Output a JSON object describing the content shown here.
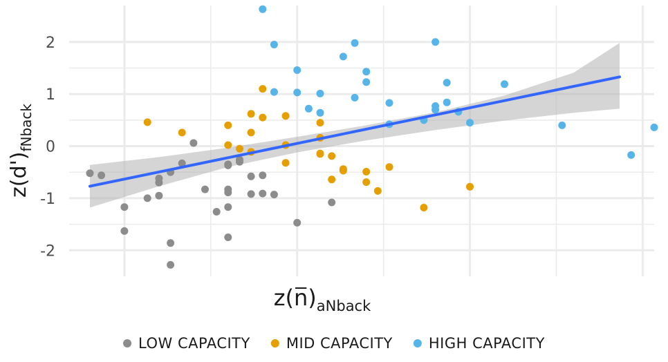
{
  "chart_data": {
    "type": "scatter",
    "xlabel": {
      "main": "z(",
      "symbol": "n",
      "close": ")",
      "sub": "aNback"
    },
    "ylabel": {
      "main": "z(d')",
      "sub": "fNback"
    },
    "xlim": [
      -1.98,
      3.1
    ],
    "ylim": [
      -2.5,
      2.7
    ],
    "x_major_ticks": [
      -1.5,
      0,
      1.5,
      3
    ],
    "x_minor_ticks": [
      -0.75,
      0.75,
      2.25
    ],
    "y_ticks": [
      -2,
      -1,
      0,
      1,
      2
    ],
    "y_tick_labels": [
      "-2",
      "-1",
      "0",
      "1",
      "2"
    ],
    "grid": true,
    "legend_position": "bottom",
    "colors": {
      "low": "#8c8c8c",
      "mid": "#e69f00",
      "high": "#56b4e9",
      "fit": "#3366ff",
      "band": "#b3b3b3",
      "grid": "#ebebeb"
    },
    "fit_line": {
      "x": [
        -1.8,
        2.8
      ],
      "y": [
        -0.77,
        1.33
      ]
    },
    "confidence_band": {
      "x": [
        -1.8,
        -1.2,
        -0.6,
        0.0,
        0.6,
        1.2,
        1.8,
        2.4,
        2.8
      ],
      "lower": [
        -1.18,
        -0.77,
        -0.4,
        -0.12,
        0.11,
        0.31,
        0.49,
        0.64,
        0.72
      ],
      "upper": [
        -0.36,
        -0.21,
        -0.03,
        0.18,
        0.4,
        0.65,
        0.97,
        1.41,
        1.98
      ]
    },
    "series": [
      {
        "name": "LOW CAPACITY",
        "color": "#8c8c8c",
        "x": [
          -1.8,
          -1.7,
          -1.5,
          -1.5,
          -1.3,
          -1.2,
          -1.2,
          -1.2,
          -1.1,
          -1.1,
          -1.1,
          -1.0,
          -0.9,
          -0.8,
          -0.7,
          -0.6,
          -0.6,
          -0.6,
          -0.6,
          -0.6,
          -0.6,
          -0.5,
          -0.5,
          -0.4,
          -0.4,
          -0.3,
          -0.3,
          -0.2,
          0.0,
          0.3
        ],
        "y": [
          -0.52,
          -0.56,
          -1.17,
          -1.63,
          -1.0,
          -0.62,
          -0.95,
          -0.7,
          -0.5,
          -1.86,
          -2.28,
          -0.33,
          0.06,
          -0.83,
          -1.26,
          -0.37,
          -0.83,
          -0.89,
          -1.17,
          -1.75,
          -0.35,
          -0.3,
          -0.26,
          -0.58,
          -0.92,
          -0.56,
          -0.91,
          -0.93,
          -1.47,
          -1.08
        ]
      },
      {
        "name": "MID CAPACITY",
        "color": "#e69f00",
        "x": [
          -1.3,
          -1.0,
          -0.6,
          -0.6,
          -0.5,
          -0.4,
          -0.4,
          -0.4,
          -0.3,
          -0.3,
          -0.1,
          -0.1,
          -0.1,
          0.2,
          0.2,
          0.2,
          0.2,
          0.3,
          0.3,
          0.4,
          0.4,
          0.6,
          0.6,
          0.7,
          0.8,
          1.1,
          1.5
        ],
        "y": [
          0.46,
          0.26,
          0.4,
          0.02,
          -0.05,
          0.62,
          0.26,
          -0.11,
          1.1,
          0.55,
          0.02,
          0.58,
          -0.32,
          0.45,
          0.16,
          -0.15,
          -0.14,
          -0.64,
          -0.19,
          -0.44,
          -0.47,
          -0.49,
          -0.69,
          -0.86,
          -0.4,
          -1.18,
          -0.78
        ]
      },
      {
        "name": "HIGH CAPACITY",
        "color": "#56b4e9",
        "x": [
          -0.3,
          -0.2,
          -0.2,
          0.0,
          0.0,
          0.1,
          0.2,
          0.2,
          0.4,
          0.5,
          0.5,
          0.6,
          0.6,
          0.8,
          0.8,
          1.1,
          1.2,
          1.2,
          1.2,
          1.3,
          1.3,
          1.4,
          1.5,
          1.8,
          2.3,
          2.9,
          3.1
        ],
        "y": [
          2.63,
          1.95,
          1.04,
          1.46,
          1.03,
          0.72,
          1.01,
          0.64,
          1.72,
          1.98,
          0.93,
          1.43,
          1.23,
          0.83,
          0.42,
          0.5,
          0.77,
          0.7,
          2.0,
          1.22,
          0.84,
          0.66,
          0.45,
          1.19,
          0.4,
          -0.17,
          0.36
        ]
      }
    ]
  }
}
